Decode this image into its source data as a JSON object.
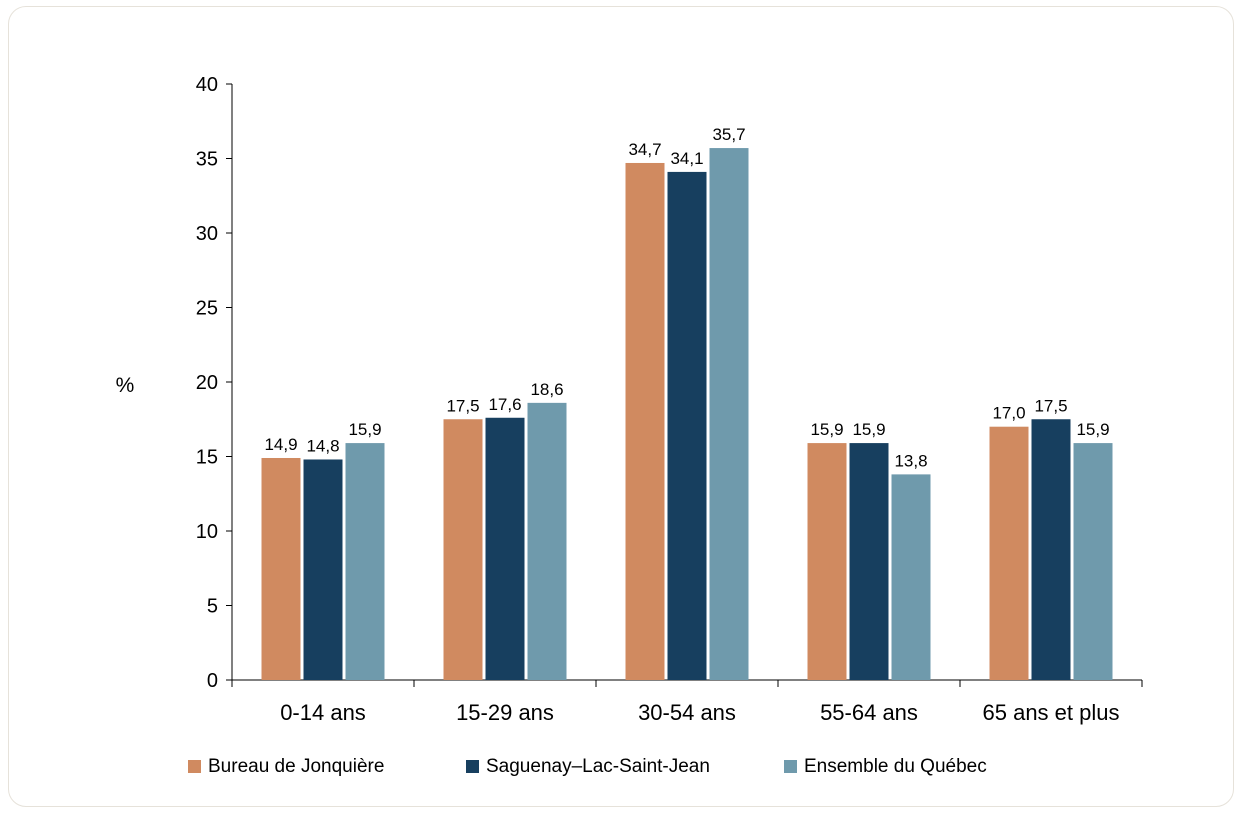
{
  "chart_data": {
    "type": "bar",
    "ylabel": "%",
    "xlabel": "",
    "ylim": [
      0,
      40
    ],
    "yticks": [
      0,
      5,
      10,
      15,
      20,
      25,
      30,
      35,
      40
    ],
    "categories": [
      "0-14 ans",
      "15-29 ans",
      "30-54 ans",
      "55-64 ans",
      "65 ans et plus"
    ],
    "series": [
      {
        "name": "Bureau de Jonquière",
        "color": "#d08a60",
        "values": [
          14.9,
          17.5,
          34.7,
          15.9,
          17.0
        ],
        "labels": [
          "14,9",
          "17,5",
          "34,7",
          "15,9",
          "17,0"
        ]
      },
      {
        "name": "Saguenay–Lac-Saint-Jean",
        "color": "#173f5f",
        "values": [
          14.8,
          17.6,
          34.1,
          15.9,
          17.5
        ],
        "labels": [
          "14,8",
          "17,6",
          "34,1",
          "15,9",
          "17,5"
        ]
      },
      {
        "name": "Ensemble du Québec",
        "color": "#6f9aac",
        "values": [
          15.9,
          18.6,
          35.7,
          13.8,
          15.9
        ],
        "labels": [
          "15,9",
          "18,6",
          "35,7",
          "13,8",
          "15,9"
        ]
      }
    ],
    "legend_position": "bottom",
    "grid": false
  }
}
